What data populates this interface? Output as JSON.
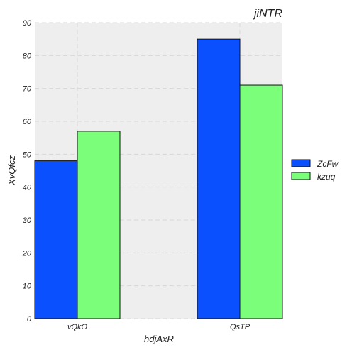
{
  "chart_data": {
    "type": "bar",
    "title": "jiNTR",
    "xlabel": "hdjAxR",
    "ylabel": "XvQfcz",
    "categories": [
      "vQkO",
      "QsTP"
    ],
    "series": [
      {
        "name": "ZcFw",
        "values": [
          48,
          85
        ],
        "color": "#0a50ff"
      },
      {
        "name": "kzuq",
        "values": [
          57,
          71
        ],
        "color": "#7bff7b"
      }
    ],
    "ylim": [
      0,
      90
    ],
    "yticks": [
      0,
      10,
      20,
      30,
      40,
      50,
      60,
      70,
      80,
      90
    ],
    "grid": true,
    "legend_position": "right",
    "background": "#eeeeee"
  }
}
